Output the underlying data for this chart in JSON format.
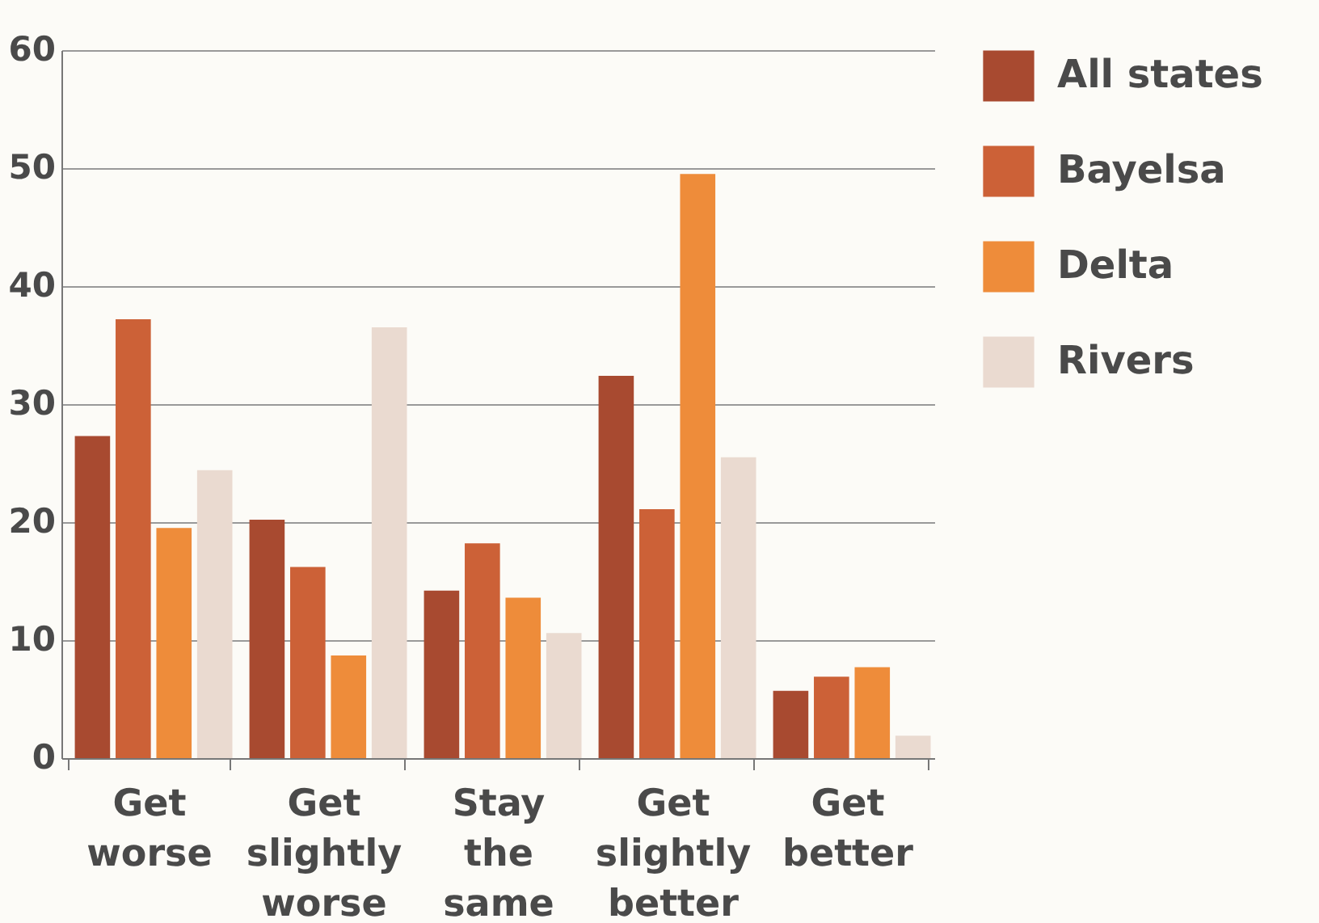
{
  "chart_data": {
    "type": "bar",
    "categories": [
      "Get worse",
      "Get slightly worse",
      "Stay the same",
      "Get slightly better",
      "Get better"
    ],
    "series": [
      {
        "name": "All states",
        "color": "#a84a30",
        "values": [
          27.3,
          20.2,
          14.2,
          32.4,
          5.7
        ]
      },
      {
        "name": "Bayelsa",
        "color": "#cc6137",
        "values": [
          37.2,
          16.2,
          18.2,
          21.1,
          6.9
        ]
      },
      {
        "name": "Delta",
        "color": "#ee8c3a",
        "values": [
          19.5,
          8.7,
          13.6,
          49.5,
          7.7
        ]
      },
      {
        "name": "Rivers",
        "color": "#eadad0",
        "values": [
          24.4,
          36.5,
          10.6,
          25.5,
          1.9
        ]
      }
    ],
    "ylim": [
      0,
      60
    ],
    "yticks": [
      0,
      10,
      20,
      30,
      40,
      50,
      60
    ],
    "grid": "y",
    "legend": "top right"
  }
}
